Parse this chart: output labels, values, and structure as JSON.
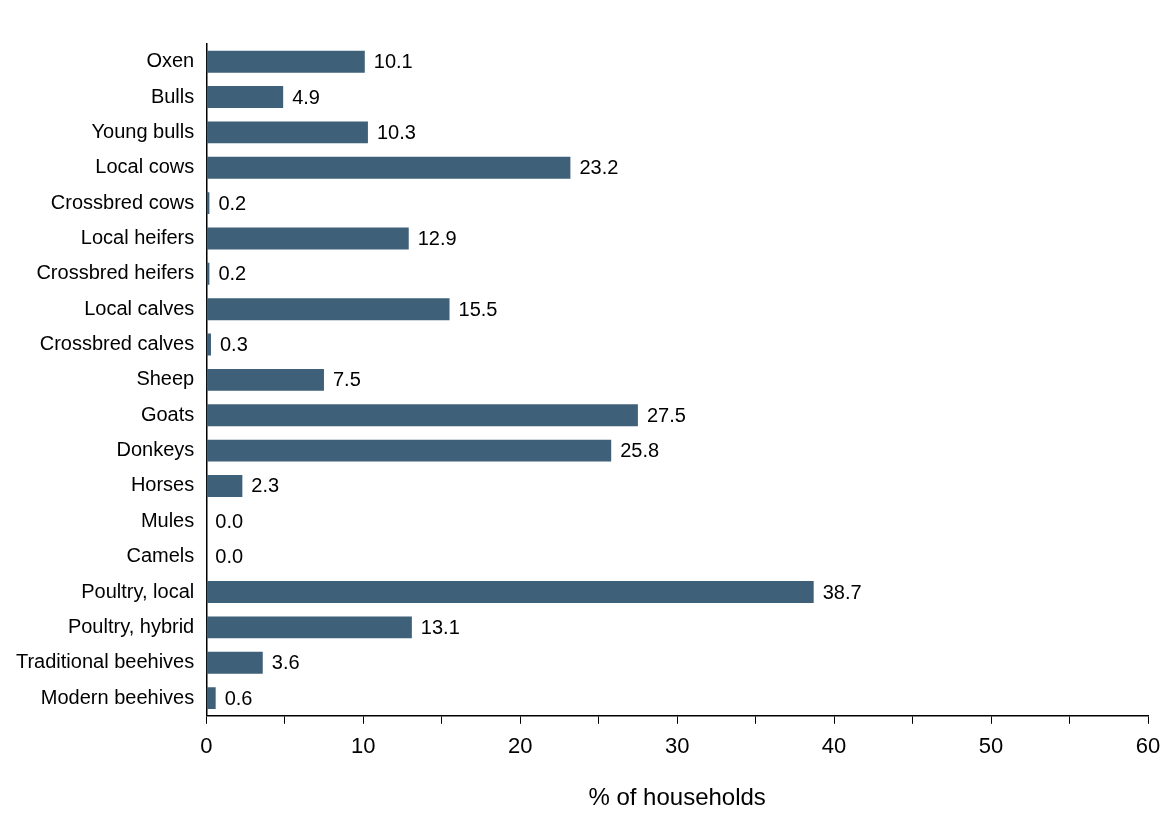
{
  "chart_data": {
    "type": "bar",
    "orientation": "horizontal",
    "xlabel": "% of households",
    "categories": [
      "Oxen",
      "Bulls",
      "Young bulls",
      "Local cows",
      "Crossbred cows",
      "Local heifers",
      "Crossbred heifers",
      "Local calves",
      "Crossbred calves",
      "Sheep",
      "Goats",
      "Donkeys",
      "Horses",
      "Mules",
      "Camels",
      "Poultry, local",
      "Poultry, hybrid",
      "Traditional beehives",
      "Modern beehives"
    ],
    "values": [
      10.1,
      4.9,
      10.3,
      23.2,
      0.2,
      12.9,
      0.2,
      15.5,
      0.3,
      7.5,
      27.5,
      25.8,
      2.3,
      0.0,
      0.0,
      38.7,
      13.1,
      3.6,
      0.6
    ],
    "value_labels": [
      "10.1",
      "4.9",
      "10.3",
      "23.2",
      "0.2",
      "12.9",
      "0.2",
      "15.5",
      "0.3",
      "7.5",
      "27.5",
      "25.8",
      "2.3",
      "0.0",
      "0.0",
      "38.7",
      "13.1",
      "3.6",
      "0.6"
    ],
    "color": "#3e6079",
    "xlim": [
      0,
      60
    ],
    "xticks": [
      0,
      {
        "value": 5,
        "label": null
      },
      10,
      {
        "value": 15,
        "label": null
      },
      20,
      {
        "value": 25,
        "label": null
      },
      30,
      {
        "value": 35,
        "label": null
      },
      40,
      {
        "value": 45,
        "label": null
      },
      50,
      {
        "value": 55,
        "label": null
      },
      60
    ],
    "grid": false,
    "legend": false
  }
}
